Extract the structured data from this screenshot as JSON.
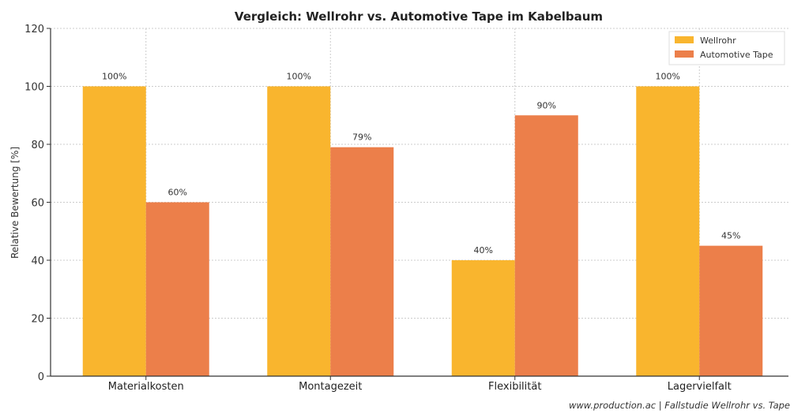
{
  "chart_data": {
    "type": "bar",
    "title": "Vergleich: Wellrohr vs. Automotive Tape im Kabelbaum",
    "xlabel": "",
    "ylabel": "Relative Bewertung [%]",
    "ylim": [
      0,
      120
    ],
    "yticks": [
      "0",
      "20",
      "40",
      "60",
      "80",
      "100",
      "120"
    ],
    "categories": [
      "Materialkosten",
      "Montagezeit",
      "Flexibilität",
      "Lagervielfalt"
    ],
    "series": [
      {
        "name": "Wellrohr",
        "color": "#F9B52E",
        "values": [
          100,
          100,
          40,
          100
        ],
        "labels": [
          "100%",
          "100%",
          "40%",
          "100%"
        ]
      },
      {
        "name": "Automotive Tape",
        "color": "#EC7F4A",
        "values": [
          60,
          79,
          90,
          45
        ],
        "labels": [
          "60%",
          "79%",
          "90%",
          "45%"
        ]
      }
    ],
    "grid": true,
    "legend_position": "top-right",
    "footer": "www.production.ac | Fallstudie Wellrohr vs. Tape"
  }
}
